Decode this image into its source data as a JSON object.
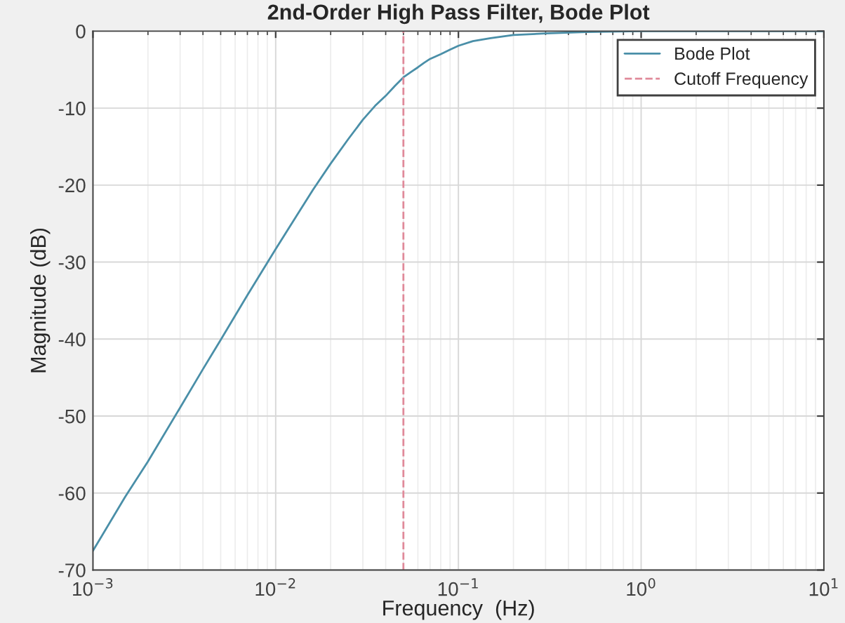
{
  "chart_data": {
    "type": "line",
    "title": "2nd-Order High Pass Filter, Bode Plot",
    "xlabel": "Frequency  (Hz)",
    "ylabel": "Magnitude (dB)",
    "log": "x",
    "xlim": [
      0.001,
      10
    ],
    "ylim": [
      -70,
      0
    ],
    "xticks": [
      {
        "value": 0.001,
        "label": "10$^{−3}$"
      },
      {
        "value": 0.01,
        "label": "10$^{−2}$"
      },
      {
        "value": 0.1,
        "label": "10$^{−1}$"
      },
      {
        "value": 1,
        "label": "10$^{0}$"
      },
      {
        "value": 10,
        "label": "10$^{1}$"
      }
    ],
    "yticks": [
      -70,
      -60,
      -50,
      -40,
      -30,
      -20,
      -10,
      0
    ],
    "grid": true,
    "legend": "top right",
    "line_style": "solid",
    "marker": "none",
    "series": [
      {
        "name": "Bode Plot",
        "color": "#4a8fa8",
        "x": [
          0.001,
          0.0015,
          0.002,
          0.003,
          0.004,
          0.005,
          0.007,
          0.01,
          0.013,
          0.016,
          0.02,
          0.025,
          0.03,
          0.035,
          0.04,
          0.045,
          0.05,
          0.055,
          0.06,
          0.065,
          0.07,
          0.08,
          0.09,
          0.1,
          0.12,
          0.15,
          0.2,
          0.3,
          0.5,
          1,
          2,
          5,
          10
        ],
        "values": [
          -67.5,
          -60.5,
          -55.9,
          -48.9,
          -43.9,
          -40.1,
          -34.3,
          -28.3,
          -24.0,
          -20.6,
          -17.2,
          -14.0,
          -11.5,
          -9.7,
          -8.4,
          -7.1,
          -6.0,
          -5.3,
          -4.7,
          -4.1,
          -3.6,
          -3.0,
          -2.4,
          -1.9,
          -1.3,
          -0.9,
          -0.5,
          -0.3,
          -0.1,
          0,
          0,
          0,
          0
        ]
      },
      {
        "name": "Cutoff Frequency",
        "color": "#e08a9a",
        "line_style": "dashed",
        "x": [
          0.05,
          0.05
        ],
        "values": [
          -70,
          0
        ]
      }
    ]
  }
}
